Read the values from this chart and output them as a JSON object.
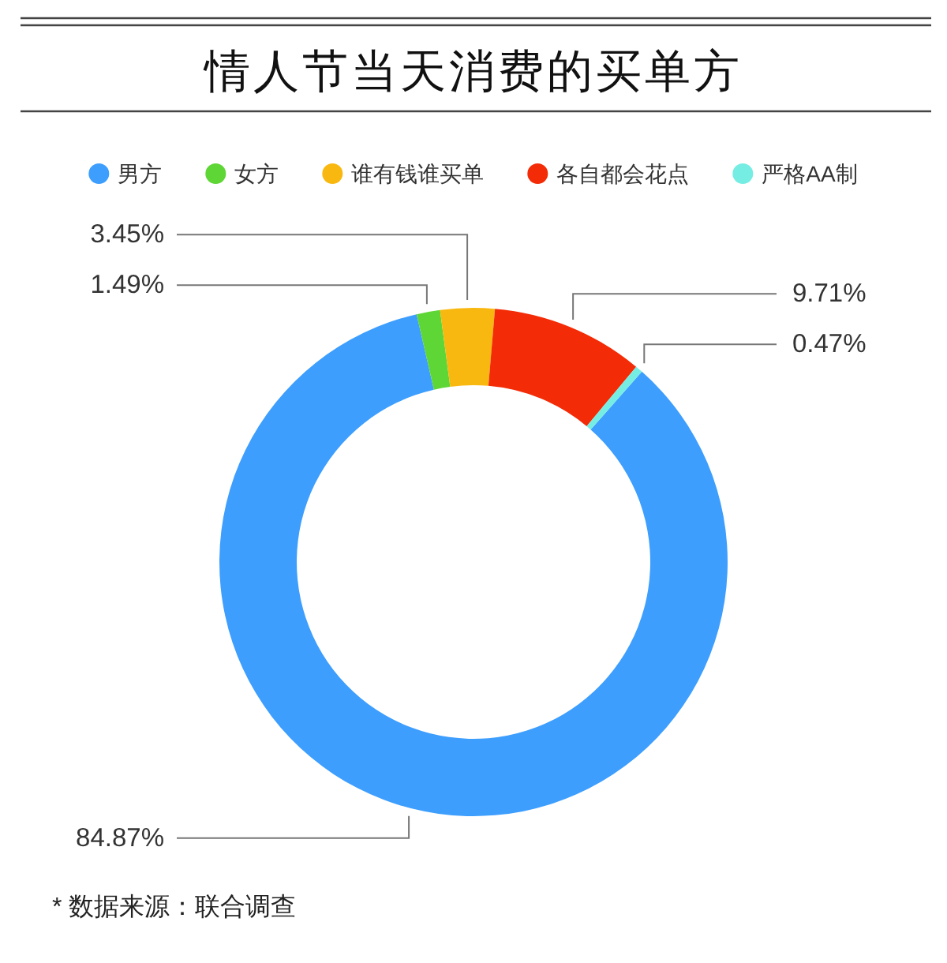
{
  "chart_data": {
    "type": "donut",
    "title": "情人节当天消费的买单方",
    "categories": [
      "男方",
      "女方",
      "谁有钱谁买单",
      "各自都会花点",
      "严格AA制"
    ],
    "values": [
      84.87,
      1.49,
      3.45,
      9.71,
      0.47
    ],
    "colors": [
      "#3d9efe",
      "#5ed636",
      "#f9b80f",
      "#f32b06",
      "#76ede2"
    ],
    "value_labels": [
      "84.87%",
      "1.49%",
      "3.45%",
      "9.71%",
      "0.47%"
    ],
    "legend": "top",
    "annotations": [
      "* 数据来源：联合调查"
    ]
  }
}
